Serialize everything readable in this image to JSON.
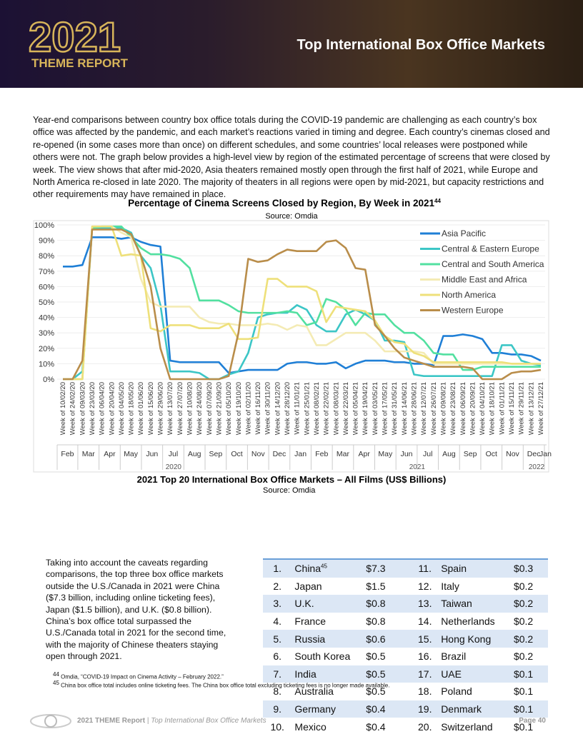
{
  "header": {
    "logo_year": "2021",
    "logo_text": "THEME REPORT",
    "title": "Top International Box Office Markets"
  },
  "intro": "Year-end comparisons between country box office totals during the COVID-19 pandemic are challenging as each country’s box office was affected by the pandemic, and each market’s reactions varied in timing and degree. Each country’s cinemas closed and re-opened (in some cases more than once) on different schedules, and some countries’ local releases were postponed while others were not. The graph below provides a high-level view by region of the estimated percentage of screens that were closed by week. The view shows that after mid-2020, Asia theaters remained mostly open through the first half of 2021, while Europe and North America re-closed in late 2020. The majority of theaters in all regions were open by mid-2021, but capacity restrictions and other requirements may have remained in place.",
  "chart_data": {
    "type": "line",
    "title": "Percentage of Cinema Screens Closed by Region, By Week in 2021",
    "title_note": "44",
    "subtitle": "Source: Omdia",
    "categories": [
      "Week of 10/02/20",
      "Week of 24/02/20",
      "Week of 09/03/20",
      "Week of 23/03/20",
      "Week of 06/04/20",
      "Week of 20/04/20",
      "Week of 04/05/20",
      "Week of 18/05/20",
      "Week of 01/06/20",
      "Week of 15/06/20",
      "Week of 29/06/20",
      "Week of 13/07/20",
      "Week of 27/07/20",
      "Week of 10/08/20",
      "Week of 24/08/20",
      "Week of 07/09/20",
      "Week of 21/09/20",
      "Week of 05/10/20",
      "Week of 19/10/20",
      "Week of 02/11/20",
      "Week of 16/11/20",
      "Week of 30/11/20",
      "Week of 14/12/20",
      "Week of 28/12/20",
      "Week of 11/01/21",
      "Week of 25/01/21",
      "Week of 08/02/21",
      "Week of 22/02/21",
      "Week of 08/03/21",
      "Week of 22/03/21",
      "Week of 05/04/21",
      "Week of 19/04/21",
      "Week of 03/05/21",
      "Week of 17/05/21",
      "Week of 31/05/21",
      "Week of 14/06/21",
      "Week of 28/06/21",
      "Week of 12/07/21",
      "Week of 26/07/21",
      "Week of 09/08/21",
      "Week of 23/08/21",
      "Week of 06/09/21",
      "Week of 20/09/21",
      "Week of 04/10/21",
      "Week of 18/10/21",
      "Week of 01/11/21",
      "Week of 15/11/21",
      "Week of 29/11/21",
      "Week of 13/12/21",
      "Week of 27/12/21"
    ],
    "month_labels": [
      "Feb",
      "Mar",
      "Apr",
      "May",
      "Jun",
      "Jul",
      "Aug",
      "Sep",
      "Oct",
      "Nov",
      "Dec",
      "Jan",
      "Feb",
      "Mar",
      "Apr",
      "May",
      "Jun",
      "Jul",
      "Aug",
      "Sep",
      "Oct",
      "Nov",
      "Dec",
      "Jan"
    ],
    "year_labels": [
      "2020",
      "2021",
      "2022"
    ],
    "ylim": [
      0,
      100
    ],
    "yticks": [
      {
        "value": 0,
        "label": "0%"
      },
      {
        "value": 10,
        "label": "10%"
      },
      {
        "value": 20,
        "label": "20%"
      },
      {
        "value": 30,
        "label": "30%"
      },
      {
        "value": 40,
        "label": "40%"
      },
      {
        "value": 50,
        "label": "50%"
      },
      {
        "value": 60,
        "label": "60%"
      },
      {
        "value": 70,
        "label": "70%"
      },
      {
        "value": 80,
        "label": "80%"
      },
      {
        "value": 90,
        "label": "90%"
      },
      {
        "value": 100,
        "label": "100%"
      }
    ],
    "legend": "top-right",
    "series": [
      {
        "name": "Asia Pacific",
        "color": "#1f7fd6",
        "values": [
          73,
          73,
          74,
          92,
          92,
          92,
          91,
          92,
          89,
          87,
          86,
          12,
          11,
          11,
          11,
          11,
          11,
          4,
          5,
          6,
          6,
          6,
          6,
          10,
          11,
          11,
          10,
          10,
          11,
          7,
          10,
          12,
          12,
          12,
          11,
          11,
          10,
          10,
          9,
          28,
          28,
          29,
          28,
          26,
          17,
          17,
          16,
          16,
          15,
          12
        ]
      },
      {
        "name": "Central & Eastern Europe",
        "color": "#3cc6c6",
        "values": [
          0,
          0,
          5,
          98,
          98,
          98,
          98,
          95,
          80,
          72,
          48,
          5,
          5,
          5,
          4,
          0,
          0,
          3,
          5,
          17,
          40,
          42,
          43,
          43,
          48,
          45,
          35,
          31,
          31,
          42,
          45,
          42,
          38,
          25,
          25,
          24,
          3,
          2,
          2,
          2,
          2,
          2,
          2,
          2,
          2,
          22,
          22,
          12,
          10,
          9
        ]
      },
      {
        "name": "Central and South America",
        "color": "#52e0a0",
        "values": [
          0,
          0,
          0,
          98,
          99,
          99,
          99,
          92,
          85,
          81,
          81,
          80,
          78,
          72,
          51,
          51,
          51,
          48,
          44,
          43,
          43,
          43,
          43,
          44,
          43,
          35,
          37,
          52,
          50,
          45,
          35,
          43,
          42,
          42,
          35,
          30,
          30,
          25,
          17,
          16,
          16,
          6,
          6,
          8,
          8,
          8,
          8,
          8,
          8,
          8
        ]
      },
      {
        "name": "Middle East and Africa",
        "color": "#f4ebb4",
        "values": [
          0,
          0,
          0,
          99,
          99,
          99,
          95,
          92,
          65,
          50,
          47,
          47,
          47,
          47,
          40,
          37,
          36,
          36,
          35,
          35,
          35,
          36,
          35,
          32,
          35,
          34,
          22,
          22,
          26,
          30,
          30,
          30,
          25,
          18,
          18,
          18,
          18,
          17,
          10,
          10,
          10,
          10,
          10,
          10,
          10,
          10,
          10,
          10,
          10,
          10
        ]
      },
      {
        "name": "North America",
        "color": "#eee07a",
        "values": [
          0,
          0,
          0,
          99,
          99,
          99,
          80,
          81,
          80,
          33,
          31,
          35,
          35,
          35,
          33,
          33,
          33,
          36,
          26,
          26,
          27,
          65,
          65,
          60,
          60,
          60,
          57,
          37,
          47,
          46,
          45,
          44,
          38,
          28,
          24,
          23,
          17,
          15,
          11,
          11,
          11,
          11,
          11,
          11,
          11,
          11,
          10,
          10,
          10,
          10
        ]
      },
      {
        "name": "Western Europe",
        "color": "#b98d4a",
        "values": [
          0,
          0,
          12,
          97,
          97,
          97,
          97,
          94,
          80,
          60,
          20,
          0,
          0,
          0,
          0,
          0,
          0,
          2,
          30,
          78,
          76,
          77,
          81,
          84,
          83,
          83,
          83,
          89,
          90,
          85,
          72,
          71,
          35,
          28,
          20,
          14,
          12,
          10,
          8,
          8,
          8,
          8,
          7,
          0,
          0,
          0,
          4,
          5,
          5,
          6
        ]
      }
    ]
  },
  "table": {
    "title": "2021 Top 20 International Box Office Markets – All Films (US$ Billions)",
    "source": "Source: Omdia",
    "china_note": "45",
    "rows": [
      [
        "1.",
        "China",
        "$7.3",
        "11.",
        "Spain",
        "$0.3"
      ],
      [
        "2.",
        "Japan",
        "$1.5",
        "12.",
        "Italy",
        "$0.2"
      ],
      [
        "3.",
        "U.K.",
        "$0.8",
        "13.",
        "Taiwan",
        "$0.2"
      ],
      [
        "4.",
        "France",
        "$0.8",
        "14.",
        "Netherlands",
        "$0.2"
      ],
      [
        "5.",
        "Russia",
        "$0.6",
        "15.",
        "Hong Kong",
        "$0.2"
      ],
      [
        "6.",
        "South Korea",
        "$0.5",
        "16.",
        "Brazil",
        "$0.2"
      ],
      [
        "7.",
        "India",
        "$0.5",
        "17.",
        "UAE",
        "$0.1"
      ],
      [
        "8.",
        "Australia",
        "$0.5",
        "18.",
        "Poland",
        "$0.1"
      ],
      [
        "9.",
        "Germany",
        "$0.4",
        "19.",
        "Denmark",
        "$0.1"
      ],
      [
        "10.",
        "Mexico",
        "$0.4",
        "20.",
        "Switzerland",
        "$0.1"
      ]
    ]
  },
  "side_text": "Taking into account the caveats regarding comparisons, the top three box office markets outside the U.S./Canada in 2021 were China ($7.3 billion, including online ticketing fees), Japan ($1.5 billion), and U.K. ($0.8 billion). China’s box office total surpassed the U.S./Canada total in 2021 for the second time, with the majority of Chinese theaters staying open through 2021.",
  "footnotes": [
    {
      "num": "44",
      "text": "Omdia, “COVID-19 Impact on Cinema Activity – February 2022.”"
    },
    {
      "num": "45",
      "text": "China box office total includes online ticketing fees. The China box office total excluding ticketing fees is no longer made available."
    }
  ],
  "footer": {
    "report": "2021 THEME Report",
    "separator": "|",
    "section": "Top International Box Office Markets",
    "page": "Page 40"
  }
}
